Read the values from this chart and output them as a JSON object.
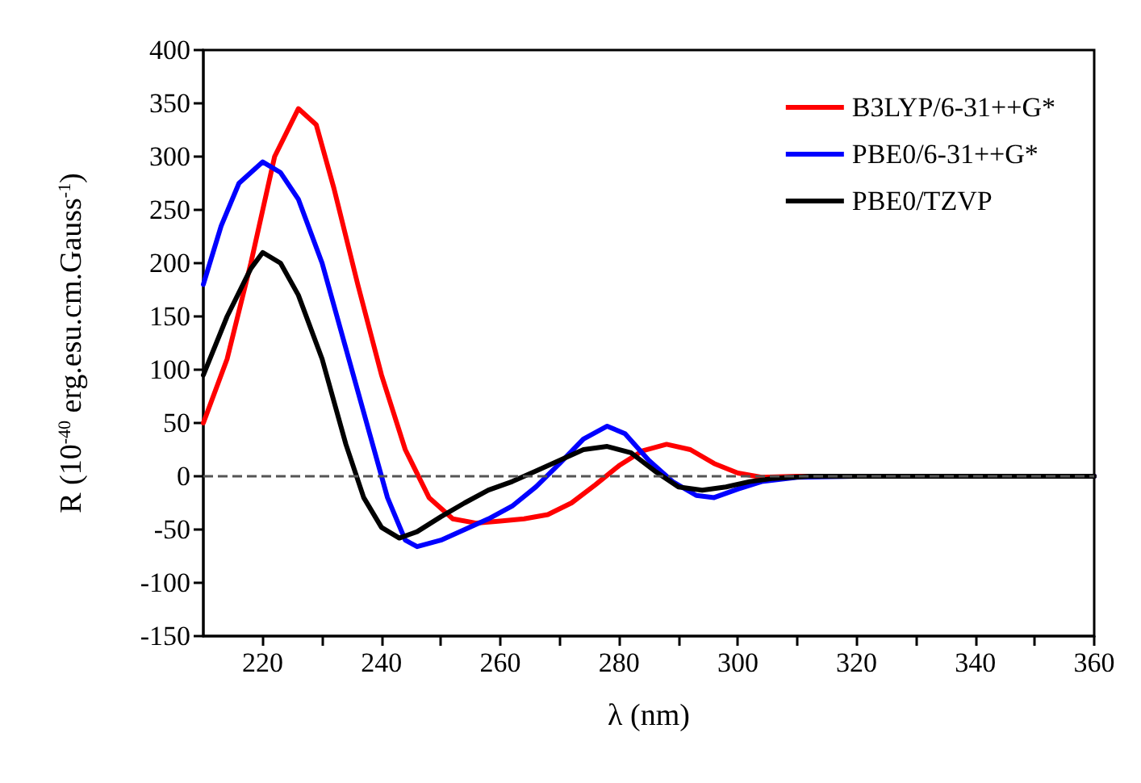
{
  "chart_data": {
    "type": "line",
    "xlabel": "λ (nm)",
    "ylabel": "R (10$^{-40}$ erg.esu.cm.Gauss$^{-1}$)",
    "xlim": [
      210,
      360
    ],
    "ylim": [
      -150,
      400
    ],
    "xticks": [
      220,
      {
        "value": 230,
        "label": null
      },
      240,
      {
        "value": 250,
        "label": null
      },
      260,
      {
        "value": 270,
        "label": null
      },
      280,
      {
        "value": 290,
        "label": null
      },
      300,
      {
        "value": 310,
        "label": null
      },
      320,
      {
        "value": 330,
        "label": null
      },
      340,
      {
        "value": 350,
        "label": null
      },
      360
    ],
    "yticks": [
      -150,
      -100,
      -50,
      0,
      50,
      100,
      150,
      200,
      250,
      300,
      350,
      400
    ],
    "grid": false,
    "legend": "top right",
    "line_style": "solid",
    "marker": "none",
    "ref_lines": [
      {
        "axis": "y",
        "value": 0,
        "label": null,
        "color": "#555555",
        "line_style": "dashed"
      }
    ],
    "series": [
      {
        "name": "B3LYP/6-31++G*",
        "color": "#ff0000",
        "x": [
          210,
          214,
          218,
          222,
          226,
          229,
          232,
          236,
          240,
          244,
          248,
          252,
          256,
          260,
          264,
          268,
          272,
          276,
          280,
          284,
          288,
          292,
          296,
          300,
          304,
          310,
          320,
          360
        ],
        "values": [
          50,
          110,
          200,
          300,
          345,
          330,
          270,
          180,
          95,
          25,
          -20,
          -40,
          -44,
          -42,
          -40,
          -36,
          -25,
          -8,
          10,
          24,
          30,
          25,
          12,
          3,
          -1,
          0,
          0,
          0
        ]
      },
      {
        "name": "PBE0/6-31++G*",
        "color": "#0000ff",
        "x": [
          210,
          213,
          216,
          220,
          223,
          226,
          230,
          234,
          238,
          241,
          244,
          246,
          250,
          254,
          258,
          262,
          266,
          270,
          274,
          278,
          281,
          285,
          289,
          293,
          296,
          300,
          304,
          310,
          320,
          360
        ],
        "values": [
          180,
          235,
          275,
          295,
          285,
          260,
          200,
          120,
          40,
          -20,
          -60,
          -66,
          -60,
          -50,
          -40,
          -28,
          -10,
          12,
          35,
          47,
          40,
          15,
          -5,
          -18,
          -20,
          -12,
          -5,
          -1,
          0,
          0
        ]
      },
      {
        "name": "PBE0/TZVP",
        "color": "#000000",
        "x": [
          210,
          214,
          218,
          220,
          223,
          226,
          230,
          234,
          237,
          240,
          243,
          246,
          250,
          254,
          258,
          262,
          266,
          270,
          274,
          278,
          282,
          286,
          290,
          294,
          298,
          302,
          306,
          312,
          360
        ],
        "values": [
          95,
          150,
          195,
          210,
          200,
          170,
          110,
          30,
          -20,
          -48,
          -58,
          -52,
          -38,
          -25,
          -13,
          -5,
          5,
          15,
          25,
          28,
          22,
          5,
          -10,
          -13,
          -10,
          -5,
          -2,
          0,
          0
        ]
      }
    ]
  }
}
